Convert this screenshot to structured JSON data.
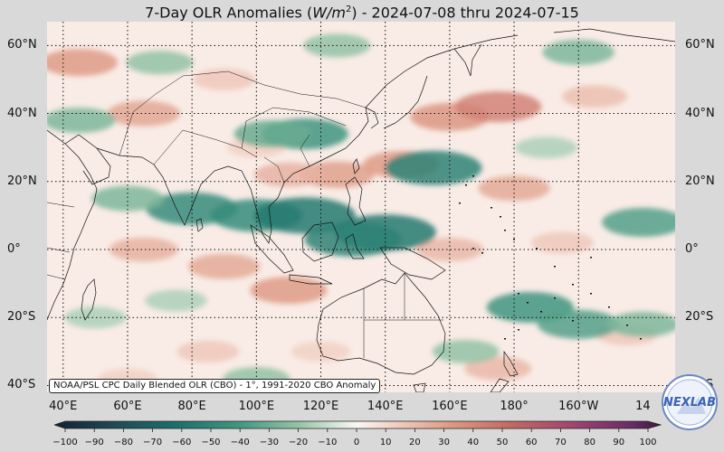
{
  "title_prefix": "7-Day OLR Anomalies (",
  "title_unit_base": "W/m",
  "title_unit_exp": "2",
  "title_suffix": ") - 2024-07-08 thru 2024-07-15",
  "source_note": "NOAA/PSL CPC Daily Blended OLR (CBO) - 1°, 1991-2020 CBO Anomaly",
  "logo_text": "NEXLAB",
  "lat_labels": [
    "60°N",
    "40°N",
    "20°N",
    "0°",
    "20°S",
    "40°S"
  ],
  "lon_labels": [
    "40°E",
    "60°E",
    "80°E",
    "100°E",
    "120°E",
    "140°E",
    "160°E",
    "180°",
    "160°W",
    "14"
  ],
  "colorbar": {
    "ticks": [
      "−100",
      "−90",
      "−80",
      "−70",
      "−60",
      "−50",
      "−40",
      "−30",
      "−20",
      "−10",
      "0",
      "10",
      "20",
      "30",
      "40",
      "50",
      "60",
      "70",
      "80",
      "90",
      "100"
    ],
    "range": [
      -100,
      100
    ]
  },
  "map": {
    "lon_range": [
      35,
      230
    ],
    "lat_range": [
      -42,
      67
    ],
    "grid_lons": [
      40,
      60,
      80,
      100,
      120,
      140,
      160,
      180,
      200
    ],
    "grid_lats": [
      -40,
      -20,
      0,
      20,
      40,
      60
    ],
    "anomalies": [
      {
        "lon": 160,
        "lat": 39,
        "value": 32
      },
      {
        "lon": 175,
        "lat": 42,
        "value": 40
      },
      {
        "lon": 125,
        "lat": 22,
        "value": 28
      },
      {
        "lon": 145,
        "lat": 25,
        "value": 30
      },
      {
        "lon": 180,
        "lat": 18,
        "value": 25
      },
      {
        "lon": 110,
        "lat": 22,
        "value": 22
      },
      {
        "lon": 65,
        "lat": 40,
        "value": 26
      },
      {
        "lon": 45,
        "lat": 55,
        "value": 30
      },
      {
        "lon": 205,
        "lat": 45,
        "value": 18
      },
      {
        "lon": 90,
        "lat": 50,
        "value": 15
      },
      {
        "lon": 100,
        "lat": 30,
        "value": 12
      },
      {
        "lon": 65,
        "lat": 0,
        "value": 22
      },
      {
        "lon": 90,
        "lat": -5,
        "value": 25
      },
      {
        "lon": 110,
        "lat": -12,
        "value": 30
      },
      {
        "lon": 160,
        "lat": 0,
        "value": 20
      },
      {
        "lon": 195,
        "lat": 2,
        "value": 15
      },
      {
        "lon": 175,
        "lat": -35,
        "value": 20
      },
      {
        "lon": 215,
        "lat": -25,
        "value": 15
      },
      {
        "lon": 120,
        "lat": -30,
        "value": 12
      },
      {
        "lon": 85,
        "lat": -30,
        "value": 15
      },
      {
        "lon": 60,
        "lat": -38,
        "value": 12
      },
      {
        "lon": 80,
        "lat": 12,
        "value": -45
      },
      {
        "lon": 100,
        "lat": 10,
        "value": -45
      },
      {
        "lon": 115,
        "lat": 10,
        "value": -55
      },
      {
        "lon": 140,
        "lat": 5,
        "value": -55
      },
      {
        "lon": 130,
        "lat": 3,
        "value": -50
      },
      {
        "lon": 155,
        "lat": 24,
        "value": -50
      },
      {
        "lon": 115,
        "lat": 34,
        "value": -40
      },
      {
        "lon": 105,
        "lat": 34,
        "value": -30
      },
      {
        "lon": 60,
        "lat": 15,
        "value": -25
      },
      {
        "lon": 185,
        "lat": -17,
        "value": -40
      },
      {
        "lon": 200,
        "lat": -22,
        "value": -35
      },
      {
        "lon": 220,
        "lat": -22,
        "value": -25
      },
      {
        "lon": 220,
        "lat": 8,
        "value": -35
      },
      {
        "lon": 200,
        "lat": 58,
        "value": -25
      },
      {
        "lon": 125,
        "lat": 60,
        "value": -20
      },
      {
        "lon": 45,
        "lat": 38,
        "value": -25
      },
      {
        "lon": 70,
        "lat": 55,
        "value": -20
      },
      {
        "lon": 100,
        "lat": -38,
        "value": -20
      },
      {
        "lon": 75,
        "lat": -15,
        "value": -15
      },
      {
        "lon": 50,
        "lat": -20,
        "value": -15
      },
      {
        "lon": 165,
        "lat": -30,
        "value": -20
      },
      {
        "lon": 190,
        "lat": 30,
        "value": -15
      }
    ]
  }
}
